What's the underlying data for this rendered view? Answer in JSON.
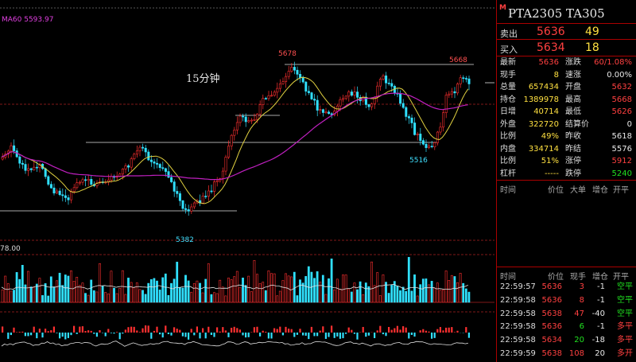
{
  "chart": {
    "ma_label": "MA60 5593.97",
    "period": "15分钟",
    "high_label": "5678",
    "recent_high_label": "5668",
    "low_label": "5382",
    "mid_low_label": "5516",
    "volume_scale": "78.00"
  },
  "panel": {
    "badge": "M",
    "title": "PTA2305  TA305",
    "ask_label": "卖出",
    "ask_price": "5636",
    "ask_qty": "49",
    "bid_label": "买入",
    "bid_price": "5634",
    "bid_qty": "18",
    "stats": [
      {
        "l1": "最新",
        "v1": "5636",
        "c1": "red",
        "l2": "涨跌",
        "v2": "60/1.08%",
        "c2": "red"
      },
      {
        "l1": "现手",
        "v1": "8",
        "c1": "yel",
        "l2": "速涨",
        "v2": "0.00%",
        "c2": "wht"
      },
      {
        "l1": "总量",
        "v1": "657434",
        "c1": "yel",
        "l2": "开盘",
        "v2": "5632",
        "c2": "red"
      },
      {
        "l1": "持仓",
        "v1": "1389978",
        "c1": "yel",
        "l2": "最高",
        "v2": "5668",
        "c2": "red"
      },
      {
        "l1": "日增",
        "v1": "40714",
        "c1": "yel",
        "l2": "最低",
        "v2": "5626",
        "c2": "red"
      },
      {
        "l1": "外盘",
        "v1": "322720",
        "c1": "yel",
        "l2": "结算价",
        "v2": "0",
        "c2": "wht"
      },
      {
        "l1": "比例",
        "v1": "49%",
        "c1": "yel",
        "l2": "昨收",
        "v2": "5618",
        "c2": "wht"
      },
      {
        "l1": "内盘",
        "v1": "334714",
        "c1": "yel",
        "l2": "昨结",
        "v2": "5576",
        "c2": "wht"
      },
      {
        "l1": "比例",
        "v1": "51%",
        "c1": "yel",
        "l2": "涨停",
        "v2": "5912",
        "c2": "red"
      },
      {
        "l1": "杠杆",
        "v1": "-----",
        "c1": "yel",
        "l2": "跌停",
        "v2": "5240",
        "c2": "grn"
      }
    ],
    "header_top": {
      "time": "时间",
      "price": "价位",
      "big": "大单",
      "oi": "增仓",
      "open": "开平"
    },
    "header_bottom": {
      "time": "时间",
      "price": "价位",
      "qty": "现手",
      "oi": "增仓",
      "open": "开平"
    },
    "trades": [
      {
        "time": "22:59:57",
        "price": "5636",
        "qty": "3",
        "qc": "red",
        "oi": "-1",
        "type": "空平",
        "tc": "grn"
      },
      {
        "time": "22:59:58",
        "price": "5636",
        "qty": "8",
        "qc": "red",
        "oi": "-1",
        "type": "空平",
        "tc": "grn"
      },
      {
        "time": "22:59:58",
        "price": "5638",
        "qty": "47",
        "qc": "red",
        "oi": "-40",
        "type": "空平",
        "tc": "grn"
      },
      {
        "time": "22:59:58",
        "price": "5636",
        "qty": "6",
        "qc": "grn",
        "oi": "-1",
        "type": "多平",
        "tc": "red"
      },
      {
        "time": "22:59:58",
        "price": "5634",
        "qty": "20",
        "qc": "grn",
        "oi": "-18",
        "type": "多平",
        "tc": "red"
      },
      {
        "time": "22:59:59",
        "price": "5638",
        "qty": "108",
        "qc": "red",
        "oi": "20",
        "type": "多开",
        "tc": "red"
      }
    ]
  }
}
